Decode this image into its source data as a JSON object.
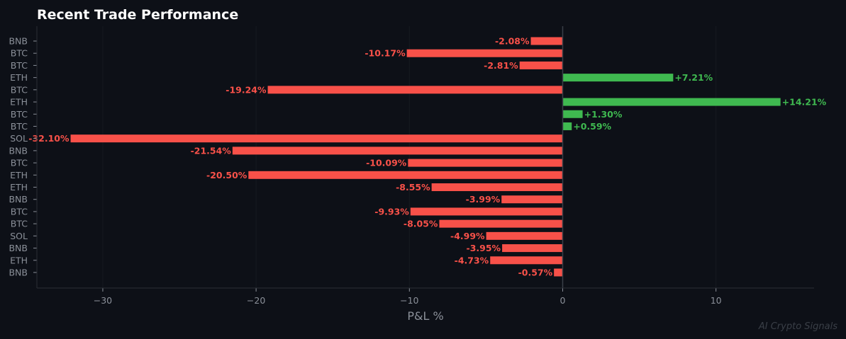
{
  "chart_data": {
    "type": "bar",
    "orientation": "horizontal",
    "title": "Recent Trade Performance",
    "xlabel": "P&L %",
    "ylabel": "",
    "xlim": [
      -34.3,
      16.4
    ],
    "xticks": [
      -30,
      -20,
      -10,
      0,
      10
    ],
    "xtick_labels": [
      "−30",
      "−20",
      "−10",
      "0",
      "10"
    ],
    "grid": true,
    "categories": [
      "BNB",
      "BTC",
      "BTC",
      "ETH",
      "BTC",
      "ETH",
      "BTC",
      "BTC",
      "SOL",
      "BNB",
      "BTC",
      "ETH",
      "ETH",
      "BNB",
      "BTC",
      "BTC",
      "SOL",
      "BNB",
      "ETH",
      "BNB"
    ],
    "values": [
      -2.08,
      -10.17,
      -2.81,
      7.21,
      -19.24,
      14.21,
      1.3,
      0.59,
      -32.1,
      -21.54,
      -10.09,
      -20.5,
      -8.55,
      -3.99,
      -9.93,
      -8.05,
      -4.99,
      -3.95,
      -4.73,
      -0.57
    ],
    "data_labels": [
      "-2.08%",
      "-10.17%",
      "-2.81%",
      "+7.21%",
      "-19.24%",
      "+14.21%",
      "+1.30%",
      "+0.59%",
      "-32.10%",
      "-21.54%",
      "-10.09%",
      "-20.50%",
      "-8.55%",
      "-3.99%",
      "-9.93%",
      "-8.05%",
      "-4.99%",
      "-3.95%",
      "-4.73%",
      "-0.57%"
    ],
    "colors": {
      "positive": "#3fb950",
      "negative": "#f85149",
      "background": "#0d1017"
    }
  },
  "watermark": "AI Crypto Signals"
}
